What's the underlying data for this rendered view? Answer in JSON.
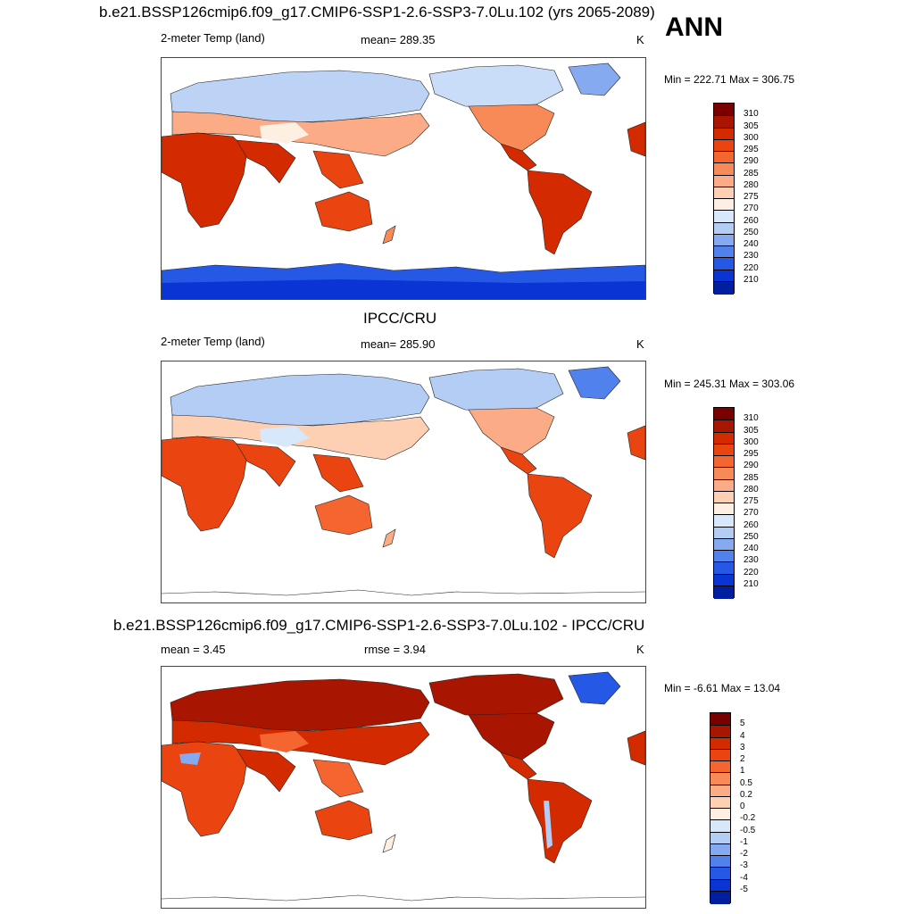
{
  "ann_label": "ANN",
  "panels": [
    {
      "title": "b.e21.BSSP126cmip6.f09_g17.CMIP6-SSP1-2.6-SSP3-7.0Lu.102 (yrs 2065-2089)",
      "left_label": "2-meter Temp (land)",
      "center_label": "mean= 289.35",
      "units": "K",
      "minmax": "Min = 222.71 Max = 306.75"
    },
    {
      "title": "IPCC/CRU",
      "left_label": "2-meter Temp (land)",
      "center_label": "mean= 285.90",
      "units": "K",
      "minmax": "Min = 245.31 Max = 303.06"
    },
    {
      "title": "b.e21.BSSP126cmip6.f09_g17.CMIP6-SSP1-2.6-SSP3-7.0Lu.102 - IPCC/CRU",
      "left_label": "mean =   3.45",
      "center_label": "rmse =   3.94",
      "units": "K",
      "minmax": "Min =  -6.61 Max =  13.04"
    }
  ],
  "colorbars": {
    "temperature": {
      "labels": [
        "310",
        "305",
        "300",
        "295",
        "290",
        "285",
        "280",
        "275",
        "270",
        "260",
        "250",
        "240",
        "230",
        "220",
        "210"
      ],
      "colors": [
        "#7a0000",
        "#a81500",
        "#d42a00",
        "#ea4410",
        "#f4652f",
        "#f88a58",
        "#fbab85",
        "#fdd0b4",
        "#fdf0e2",
        "#d8e8fb",
        "#b3cdf5",
        "#86aaf0",
        "#5181ec",
        "#2658e6",
        "#0a35d4",
        "#001fa0"
      ]
    },
    "difference": {
      "labels": [
        "5",
        "4",
        "3",
        "2",
        "1",
        "0.5",
        "0.2",
        "0",
        "-0.2",
        "-0.5",
        "-1",
        "-2",
        "-3",
        "-4",
        "-5"
      ],
      "colors": [
        "#7a0000",
        "#a81500",
        "#d42a00",
        "#ea4410",
        "#f4652f",
        "#f88a58",
        "#fbab85",
        "#fdd0b4",
        "#fdf0e2",
        "#d8e8fb",
        "#b3cdf5",
        "#86aaf0",
        "#5181ec",
        "#2658e6",
        "#0a35d4",
        "#001fa0"
      ]
    }
  }
}
